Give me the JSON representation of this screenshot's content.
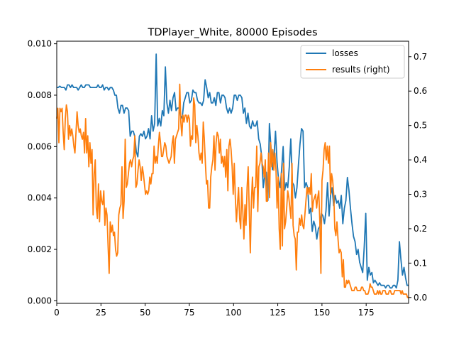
{
  "chart_data": {
    "type": "line",
    "title": "TDPlayer_White, 80000 Episodes",
    "xlabel": "",
    "ylabel": "",
    "xlim": [
      0,
      199
    ],
    "ylim": [
      -0.0001,
      0.0101
    ],
    "ylim_right": [
      -0.017,
      0.745
    ],
    "grid": false,
    "legend_position": "top-right",
    "x_ticks": [
      0,
      25,
      50,
      75,
      100,
      125,
      150,
      175
    ],
    "x_tick_labels": [
      "0",
      "25",
      "50",
      "75",
      "100",
      "125",
      "150",
      "175"
    ],
    "y_ticks": [
      0.0,
      0.002,
      0.004,
      0.006,
      0.008,
      0.01
    ],
    "y_tick_labels": [
      "0.000",
      "0.002",
      "0.004",
      "0.006",
      "0.008",
      "0.010"
    ],
    "y2_ticks": [
      0.0,
      0.1,
      0.2,
      0.3,
      0.4,
      0.5,
      0.6,
      0.7
    ],
    "y2_tick_labels": [
      "0.0",
      "0.1",
      "0.2",
      "0.3",
      "0.4",
      "0.5",
      "0.6",
      "0.7"
    ],
    "series": [
      {
        "name": "losses",
        "axis": "left",
        "color": "#1f77b4",
        "values": [
          0.0083,
          0.0083,
          0.00835,
          0.0083,
          0.0083,
          0.0083,
          0.0082,
          0.0084,
          0.0084,
          0.0083,
          0.0084,
          0.0083,
          0.0083,
          0.0083,
          0.0082,
          0.0083,
          0.0084,
          0.0083,
          0.0083,
          0.0084,
          0.0084,
          0.0084,
          0.0083,
          0.0083,
          0.0083,
          0.0083,
          0.0083,
          0.0084,
          0.0083,
          0.0083,
          0.0084,
          0.0082,
          0.0083,
          0.0083,
          0.0082,
          0.0083,
          0.0083,
          0.0082,
          0.008,
          0.008,
          0.0075,
          0.0073,
          0.0076,
          0.0076,
          0.0073,
          0.0075,
          0.0075,
          0.0074,
          0.0064,
          0.0066,
          0.0066,
          0.0064,
          0.0058,
          0.0056,
          0.0064,
          0.0065,
          0.0064,
          0.0066,
          0.0063,
          0.0064,
          0.0067,
          0.0063,
          0.0072,
          0.0066,
          0.0069,
          0.0096,
          0.0068,
          0.0071,
          0.0068,
          0.0074,
          0.0072,
          0.0091,
          0.0077,
          0.0073,
          0.0078,
          0.0074,
          0.0079,
          0.0081,
          0.0074,
          0.0075,
          0.0075,
          0.0072,
          0.0071,
          0.0077,
          0.0079,
          0.0081,
          0.0081,
          0.0077,
          0.0078,
          0.0082,
          0.0081,
          0.0081,
          0.0078,
          0.0077,
          0.0077,
          0.0076,
          0.0078,
          0.0086,
          0.0083,
          0.0079,
          0.0081,
          0.0077,
          0.0077,
          0.0079,
          0.0076,
          0.0081,
          0.0081,
          0.0077,
          0.008,
          0.008,
          0.0079,
          0.0075,
          0.0073,
          0.0075,
          0.0073,
          0.0075,
          0.008,
          0.008,
          0.0078,
          0.008,
          0.008,
          0.0079,
          0.0073,
          0.0075,
          0.0069,
          0.0073,
          0.0068,
          0.0067,
          0.007,
          0.0068,
          0.0068,
          0.007,
          0.0063,
          0.0061,
          0.0056,
          0.0044,
          0.0049,
          0.005,
          0.0039,
          0.0069,
          0.006,
          0.0051,
          0.0056,
          0.0066,
          0.0054,
          0.0047,
          0.0044,
          0.0051,
          0.006,
          0.0043,
          0.0046,
          0.0044,
          0.0052,
          0.0063,
          0.0046,
          0.0045,
          0.004,
          0.0044,
          0.0053,
          0.0061,
          0.0067,
          0.0066,
          0.0044,
          0.0046,
          0.0044,
          0.0034,
          0.0036,
          0.0027,
          0.0031,
          0.0029,
          0.0024,
          0.0028,
          0.0029,
          0.0034,
          0.0033,
          0.003,
          0.0035,
          0.0046,
          0.0033,
          0.0041,
          0.0044,
          0.0037,
          0.0041,
          0.0038,
          0.0039,
          0.0036,
          0.0041,
          0.003,
          0.0036,
          0.0039,
          0.0048,
          0.0043,
          0.0036,
          0.003,
          0.0025,
          0.0023,
          0.0018,
          0.002,
          0.0015,
          0.0013,
          0.0011,
          0.0021,
          0.0034,
          0.0008,
          0.0013,
          0.001,
          0.0011,
          0.0007,
          0.0008,
          0.0007,
          0.0006,
          0.0007,
          0.0006,
          0.0006,
          0.0006,
          0.0005,
          0.0006,
          0.0006,
          0.0005,
          0.0005,
          0.0006,
          0.0006,
          0.0005,
          0.0008,
          0.0023,
          0.0016,
          0.001,
          0.0013,
          0.0009,
          0.0006,
          0.0006
        ]
      },
      {
        "name": "results (right)",
        "axis": "right",
        "color": "#ff7f0e",
        "values": [
          0.52,
          0.55,
          0.45,
          0.55,
          0.54,
          0.55,
          0.48,
          0.43,
          0.52,
          0.56,
          0.54,
          0.46,
          0.5,
          0.47,
          0.49,
          0.47,
          0.44,
          0.42,
          0.48,
          0.54,
          0.5,
          0.48,
          0.49,
          0.47,
          0.46,
          0.48,
          0.42,
          0.52,
          0.42,
          0.47,
          0.38,
          0.45,
          0.39,
          0.43,
          0.24,
          0.36,
          0.4,
          0.26,
          0.23,
          0.33,
          0.22,
          0.31,
          0.28,
          0.27,
          0.31,
          0.21,
          0.26,
          0.24,
          0.15,
          0.07,
          0.22,
          0.19,
          0.21,
          0.18,
          0.19,
          0.14,
          0.12,
          0.13,
          0.24,
          0.26,
          0.27,
          0.38,
          0.23,
          0.28,
          0.46,
          0.32,
          0.33,
          0.36,
          0.39,
          0.4,
          0.38,
          0.4,
          0.41,
          0.47,
          0.32,
          0.33,
          0.37,
          0.4,
          0.38,
          0.34,
          0.38,
          0.36,
          0.33,
          0.3,
          0.31,
          0.3,
          0.31,
          0.35,
          0.33,
          0.36,
          0.36,
          0.44,
          0.39,
          0.41,
          0.39,
          0.44,
          0.48,
          0.45,
          0.41,
          0.41,
          0.43,
          0.45,
          0.44,
          0.41,
          0.4,
          0.39,
          0.4,
          0.41,
          0.45,
          0.47,
          0.39,
          0.46,
          0.47,
          0.48,
          0.49,
          0.62,
          0.51,
          0.47,
          0.53,
          0.51,
          0.53,
          0.53,
          0.51,
          0.53,
          0.52,
          0.44,
          0.47,
          0.46,
          0.58,
          0.56,
          0.45,
          0.5,
          0.47,
          0.42,
          0.4,
          0.42,
          0.39,
          0.51,
          0.46,
          0.39,
          0.33,
          0.34,
          0.26,
          0.26,
          0.35,
          0.38,
          0.4,
          0.47,
          0.37,
          0.45,
          0.48,
          0.47,
          0.42,
          0.46,
          0.39,
          0.41,
          0.38,
          0.41,
          0.35,
          0.43,
          0.31,
          0.44,
          0.46,
          0.43,
          0.38,
          0.3,
          0.39,
          0.29,
          0.22,
          0.27,
          0.32,
          0.23,
          0.2,
          0.32,
          0.25,
          0.17,
          0.27,
          0.21,
          0.32,
          0.38,
          0.25,
          0.13,
          0.28,
          0.35,
          0.26,
          0.32,
          0.32,
          0.44,
          0.25,
          0.38,
          0.39,
          0.42,
          0.39,
          0.38,
          0.35,
          0.4,
          0.28,
          0.28,
          0.42,
          0.29,
          0.45,
          0.38,
          0.43,
          0.37,
          0.42,
          0.37,
          0.26,
          0.35,
          0.2,
          0.14,
          0.36,
          0.15,
          0.39,
          0.2,
          0.22,
          0.26,
          0.31,
          0.29,
          0.26,
          0.23,
          0.39,
          0.21,
          0.18,
          0.17,
          0.08,
          0.19,
          0.19,
          0.23,
          0.21,
          0.24,
          0.21,
          0.2,
          0.24,
          0.28,
          0.32,
          0.3,
          0.32,
          0.3,
          0.36,
          0.25,
          0.28,
          0.29,
          0.3,
          0.26,
          0.29,
          0.31,
          0.22,
          0.07,
          0.34,
          0.37,
          0.43,
          0.45,
          0.4,
          0.44,
          0.39,
          0.44,
          0.3,
          0.36,
          0.34,
          0.3,
          0.2,
          0.18,
          0.22,
          0.17,
          0.13,
          0.14,
          0.13,
          0.06,
          0.11,
          0.03,
          0.03,
          0.05,
          0.04,
          0.05,
          0.04,
          0.03,
          0.02,
          0.02,
          0.02,
          0.03,
          0.03,
          0.02,
          0.02,
          0.02,
          0.02,
          0.03,
          0.03,
          0.02,
          0.02,
          0.01,
          0.01,
          0.01,
          0.02,
          0.04,
          0.03,
          0.03,
          0.02,
          0.01,
          0.01,
          0.01,
          0.02,
          0.01,
          0.02,
          0.01,
          0.01,
          0.02,
          0.02,
          0.02,
          0.01,
          0.01,
          0.01,
          0.02,
          0.02,
          0.01,
          0.01,
          0.01,
          0.02,
          0.02,
          0.02,
          0.02,
          0.02,
          0.02,
          0.01,
          0.02,
          0.01,
          0.01,
          0.01,
          0.01,
          0.0,
          0.0
        ]
      }
    ]
  }
}
